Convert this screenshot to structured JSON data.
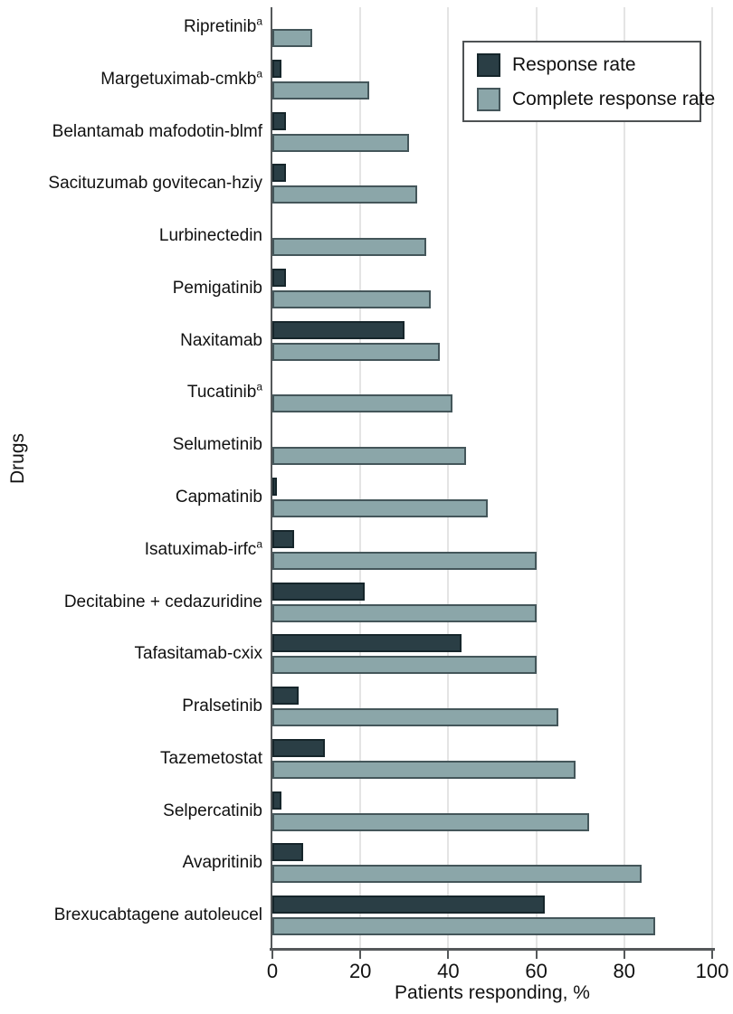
{
  "figure_title": "",
  "axes": {
    "x_title": "Patients responding, %",
    "y_title": "Drugs",
    "x_ticks": [
      0,
      20,
      40,
      60,
      80,
      100
    ]
  },
  "legend": {
    "items": [
      {
        "label": "Response rate",
        "color": "#2a3e45",
        "border": "#16262b"
      },
      {
        "label": "Complete response rate",
        "color": "#8ba6a9",
        "border": "#44565a"
      }
    ]
  },
  "colors": {
    "dark_bar": "#2a3e45",
    "dark_bar_border": "#16262b",
    "light_bar": "#8ba6a9",
    "light_bar_border": "#44565a",
    "gridline": "#e4e4e4",
    "axis": "#55585a",
    "text": "#111111"
  },
  "chart_data": {
    "type": "bar",
    "orientation": "horizontal",
    "title": "",
    "xlabel": "Patients responding, %",
    "ylabel": "Drugs",
    "xlim": [
      0,
      100
    ],
    "x_ticks": [
      0,
      20,
      40,
      60,
      80,
      100
    ],
    "grid": "vertical",
    "legend_position": "top-right",
    "categories": [
      {
        "label": "Ripretinib",
        "sup": "a"
      },
      {
        "label": "Margetuximab-cmkb",
        "sup": "a"
      },
      {
        "label": "Belantamab mafodotin-blmf",
        "sup": ""
      },
      {
        "label": "Sacituzumab govitecan-hziy",
        "sup": ""
      },
      {
        "label": "Lurbinectedin",
        "sup": ""
      },
      {
        "label": "Pemigatinib",
        "sup": ""
      },
      {
        "label": "Naxitamab",
        "sup": ""
      },
      {
        "label": "Tucatinib",
        "sup": "a"
      },
      {
        "label": "Selumetinib",
        "sup": ""
      },
      {
        "label": "Capmatinib",
        "sup": ""
      },
      {
        "label": "Isatuximab-irfc",
        "sup": "a"
      },
      {
        "label": "Decitabine + cedazuridine",
        "sup": ""
      },
      {
        "label": "Tafasitamab-cxix",
        "sup": ""
      },
      {
        "label": "Pralsetinib",
        "sup": ""
      },
      {
        "label": "Tazemetostat",
        "sup": ""
      },
      {
        "label": "Selpercatinib",
        "sup": ""
      },
      {
        "label": "Avapritinib",
        "sup": ""
      },
      {
        "label": "Brexucabtagene autoleucel",
        "sup": ""
      }
    ],
    "series": [
      {
        "name": "Response rate",
        "color": "#2a3e45",
        "values": [
          0,
          2,
          3,
          3,
          0,
          3,
          30,
          0,
          0,
          1,
          5,
          21,
          43,
          6,
          12,
          2,
          7,
          62
        ]
      },
      {
        "name": "Complete response rate",
        "color": "#8ba6a9",
        "values": [
          9,
          22,
          31,
          33,
          35,
          36,
          38,
          41,
          44,
          49,
          60,
          60,
          60,
          65,
          69,
          72,
          84,
          87
        ]
      }
    ]
  }
}
